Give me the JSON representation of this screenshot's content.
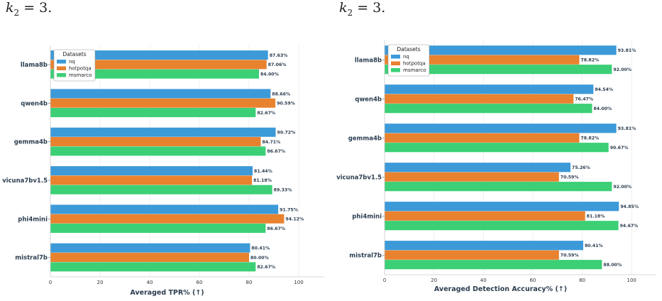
{
  "captions": [
    {
      "k": "k",
      "sub": "2",
      "rest": " = 3."
    },
    {
      "k": "k",
      "sub": "2",
      "rest": " = 3."
    }
  ],
  "colors": {
    "nq": "#3c9ad9",
    "hotpotqa": "#e8822f",
    "msmarco": "#3ccf76"
  },
  "chart_data": [
    {
      "type": "bar",
      "orientation": "horizontal",
      "categories": [
        "llama8b",
        "qwen4b",
        "gemma4b",
        "vicuna7bv1.5",
        "phi4mini",
        "mistral7b"
      ],
      "series": [
        {
          "name": "nq",
          "values": [
            87.63,
            88.66,
            90.72,
            81.44,
            91.75,
            80.41
          ]
        },
        {
          "name": "hotpotqa",
          "values": [
            87.06,
            90.59,
            84.71,
            81.18,
            94.12,
            80.0
          ]
        },
        {
          "name": "msmarco",
          "values": [
            84.0,
            82.67,
            86.67,
            89.33,
            86.67,
            82.67
          ]
        }
      ],
      "value_labels": [
        [
          "87.63%",
          "87.06%",
          "84.00%"
        ],
        [
          "88.66%",
          "90.59%",
          "82.67%"
        ],
        [
          "90.72%",
          "84.71%",
          "86.67%"
        ],
        [
          "81.44%",
          "81.18%",
          "89.33%"
        ],
        [
          "91.75%",
          "94.12%",
          "86.67%"
        ],
        [
          "80.41%",
          "80.00%",
          "82.67%"
        ]
      ],
      "xlabel": "Averaged TPR% (↑)",
      "xlim": [
        0,
        110
      ],
      "xticks": [
        "0",
        "20",
        "40",
        "60",
        "80",
        "100"
      ],
      "legend_title": "Datasets",
      "legend_position": "top-left",
      "grid": true
    },
    {
      "type": "bar",
      "orientation": "horizontal",
      "categories": [
        "llama8b",
        "qwen4b",
        "gemma4b",
        "vicuna7bv1.5",
        "phi4mini",
        "mistral7b"
      ],
      "series": [
        {
          "name": "nq",
          "values": [
            93.81,
            84.54,
            93.81,
            75.26,
            94.85,
            80.41
          ]
        },
        {
          "name": "hotpotqa",
          "values": [
            78.82,
            76.47,
            78.82,
            70.59,
            81.18,
            70.59
          ]
        },
        {
          "name": "msmarco",
          "values": [
            92.0,
            84.0,
            90.67,
            92.0,
            94.67,
            88.0
          ]
        }
      ],
      "value_labels": [
        [
          "93.81%",
          "78.82%",
          "92.00%"
        ],
        [
          "84.54%",
          "76.47%",
          "84.00%"
        ],
        [
          "93.81%",
          "78.82%",
          "90.67%"
        ],
        [
          "75.26%",
          "70.59%",
          "92.00%"
        ],
        [
          "94.85%",
          "81.18%",
          "94.67%"
        ],
        [
          "80.41%",
          "70.59%",
          "88.00%"
        ]
      ],
      "xlabel": "Averaged Detection Accuracy% (↑)",
      "xlim": [
        0,
        110
      ],
      "xticks": [
        "0",
        "20",
        "40",
        "60",
        "80",
        "100"
      ],
      "legend_title": "Datasets",
      "legend_position": "top-left",
      "grid": true
    }
  ]
}
